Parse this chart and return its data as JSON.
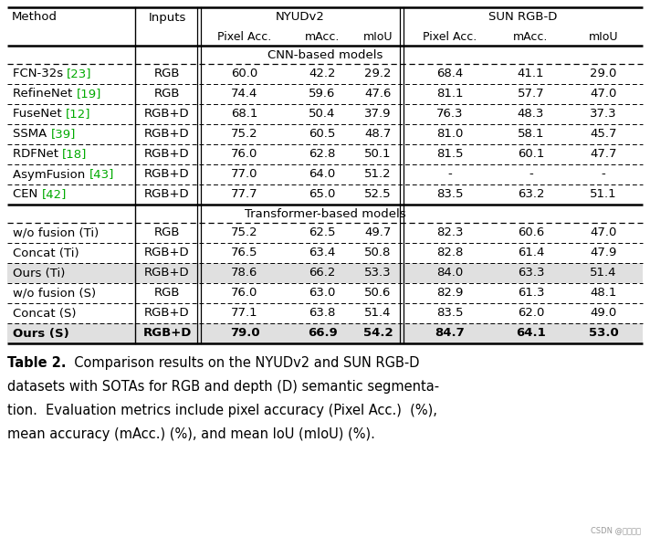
{
  "caption_title": "Table 2.",
  "caption_body": "  Comparison results on the NYUDv2 and SUN RGB-D\ndatasets with SOTAs for RGB and depth (D) semantic segmenta-\ntion.  Evaluation metrics include pixel accuracy (Pixel Acc.)  (%),\nmean accuracy (mAcc.) (%), and mean IoU (mIoU) (%).",
  "section1_label": "CNN-based models",
  "section2_label": "Transformer-based models",
  "cnn_rows": [
    [
      "FCN-32s",
      "23",
      "RGB",
      "60.0",
      "42.2",
      "29.2",
      "68.4",
      "41.1",
      "29.0"
    ],
    [
      "RefineNet",
      "19",
      "RGB",
      "74.4",
      "59.6",
      "47.6",
      "81.1",
      "57.7",
      "47.0"
    ],
    [
      "FuseNet",
      "12",
      "RGB+D",
      "68.1",
      "50.4",
      "37.9",
      "76.3",
      "48.3",
      "37.3"
    ],
    [
      "SSMA",
      "39",
      "RGB+D",
      "75.2",
      "60.5",
      "48.7",
      "81.0",
      "58.1",
      "45.7"
    ],
    [
      "RDFNet",
      "18",
      "RGB+D",
      "76.0",
      "62.8",
      "50.1",
      "81.5",
      "60.1",
      "47.7"
    ],
    [
      "AsymFusion",
      "43",
      "RGB+D",
      "77.0",
      "64.0",
      "51.2",
      "-",
      "-",
      "-"
    ],
    [
      "CEN",
      "42",
      "RGB+D",
      "77.7",
      "65.0",
      "52.5",
      "83.5",
      "63.2",
      "51.1"
    ]
  ],
  "transformer_rows": [
    [
      "w/o fusion (Ti)",
      "",
      "RGB",
      "75.2",
      "62.5",
      "49.7",
      "82.3",
      "60.6",
      "47.0"
    ],
    [
      "Concat (Ti)",
      "",
      "RGB+D",
      "76.5",
      "63.4",
      "50.8",
      "82.8",
      "61.4",
      "47.9"
    ],
    [
      "Ours (Ti)",
      "",
      "RGB+D",
      "78.6",
      "66.2",
      "53.3",
      "84.0",
      "63.3",
      "51.4"
    ],
    [
      "w/o fusion (S)",
      "",
      "RGB",
      "76.0",
      "63.0",
      "50.6",
      "82.9",
      "61.3",
      "48.1"
    ],
    [
      "Concat (S)",
      "",
      "RGB+D",
      "77.1",
      "63.8",
      "51.4",
      "83.5",
      "62.0",
      "49.0"
    ],
    [
      "Ours (S)",
      "",
      "RGB+D",
      "79.0",
      "66.9",
      "54.2",
      "84.7",
      "64.1",
      "53.0"
    ]
  ],
  "highlight_indices_trans": [
    2,
    5
  ],
  "bg_color": "#ffffff",
  "highlight_color": "#e0e0e0",
  "ref_color": "#00aa00",
  "watermark": "CSDN @翰墨大人"
}
